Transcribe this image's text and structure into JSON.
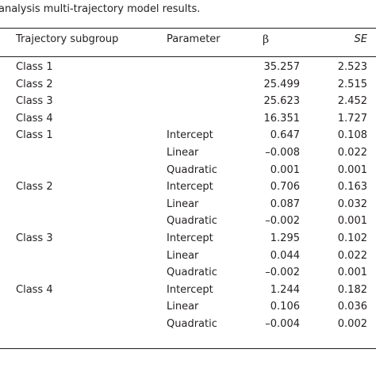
{
  "caption": "analysis multi-trajectory model results.",
  "header": {
    "subgroup": "Trajectory subgroup",
    "parameter": "Parameter",
    "beta": "β",
    "se": "SE"
  },
  "rows": [
    {
      "subgroup": "Class 1",
      "parameter": "",
      "beta": "35.257",
      "se": "2.523"
    },
    {
      "subgroup": "Class 2",
      "parameter": "",
      "beta": "25.499",
      "se": "2.515"
    },
    {
      "subgroup": "Class 3",
      "parameter": "",
      "beta": "25.623",
      "se": "2.452"
    },
    {
      "subgroup": "Class 4",
      "parameter": "",
      "beta": "16.351",
      "se": "1.727"
    },
    {
      "subgroup": "Class 1",
      "parameter": "Intercept",
      "beta": "0.647",
      "se": "0.108"
    },
    {
      "subgroup": "",
      "parameter": "Linear",
      "beta": "–0.008",
      "se": "0.022"
    },
    {
      "subgroup": "",
      "parameter": "Quadratic",
      "beta": "0.001",
      "se": "0.001"
    },
    {
      "subgroup": "Class 2",
      "parameter": "Intercept",
      "beta": "0.706",
      "se": "0.163"
    },
    {
      "subgroup": "",
      "parameter": "Linear",
      "beta": "0.087",
      "se": "0.032"
    },
    {
      "subgroup": "",
      "parameter": "Quadratic",
      "beta": "–0.002",
      "se": "0.001"
    },
    {
      "subgroup": "Class 3",
      "parameter": "Intercept",
      "beta": "1.295",
      "se": "0.102"
    },
    {
      "subgroup": "",
      "parameter": "Linear",
      "beta": "0.044",
      "se": "0.022"
    },
    {
      "subgroup": "",
      "parameter": "Quadratic",
      "beta": "–0.002",
      "se": "0.001"
    },
    {
      "subgroup": "Class 4",
      "parameter": "Intercept",
      "beta": "1.244",
      "se": "0.182"
    },
    {
      "subgroup": "",
      "parameter": "Linear",
      "beta": "0.106",
      "se": "0.036"
    },
    {
      "subgroup": "",
      "parameter": "Quadratic",
      "beta": "–0.004",
      "se": "0.002"
    }
  ]
}
